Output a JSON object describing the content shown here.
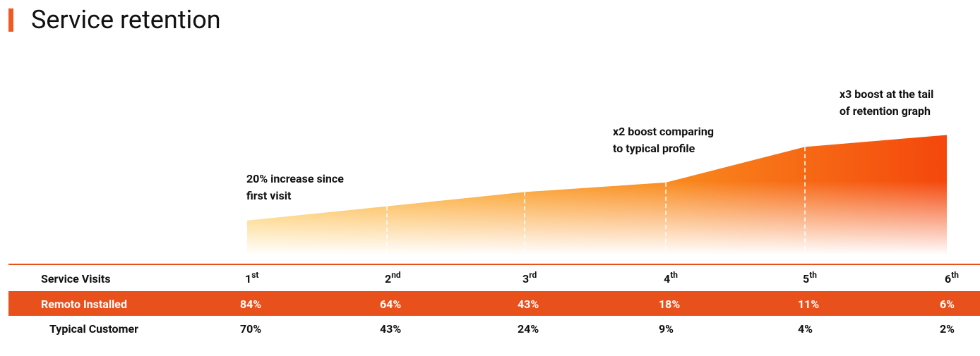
{
  "title": "Service retention",
  "retention_graph": {
    "type": "area",
    "values": [
      1.2,
      1.5,
      1.8,
      2,
      2.75,
      3
    ],
    "ylim": [
      0.5,
      3.2
    ],
    "annotations": [
      [
        "20% increase since",
        "first visit"
      ],
      [
        "x2 boost comparing",
        "to typical profile"
      ],
      [
        "x3 boost at the tail",
        "of retention graph"
      ]
    ]
  },
  "table": {
    "header": {
      "label": "Service Visits",
      "cells": [
        {
          "n": "1",
          "sup": "st"
        },
        {
          "n": "2",
          "sup": "nd"
        },
        {
          "n": "3",
          "sup": "rd"
        },
        {
          "n": "4",
          "sup": "th"
        },
        {
          "n": "5",
          "sup": "th"
        },
        {
          "n": "6",
          "sup": "th"
        }
      ]
    },
    "rows": [
      {
        "label": "Remoto Installed",
        "cells": [
          "84%",
          "64%",
          "43%",
          "18%",
          "11%",
          "6%"
        ]
      },
      {
        "label": "Typical Customer",
        "cells": [
          "70%",
          "43%",
          "24%",
          "9%",
          "4%",
          "2%"
        ]
      }
    ]
  }
}
